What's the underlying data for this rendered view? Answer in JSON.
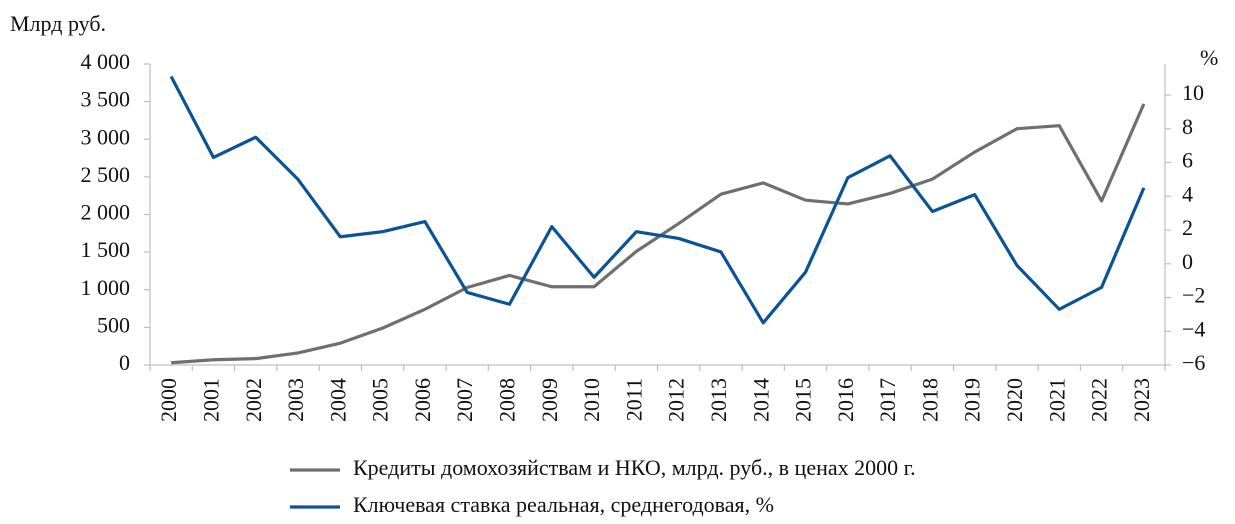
{
  "chart_data": {
    "type": "line",
    "y_label": "Млрд руб.",
    "y2_label": "%",
    "categories": [
      "2000",
      "2001",
      "2002",
      "2003",
      "2004",
      "2005",
      "2006",
      "2007",
      "2008",
      "2009",
      "2010",
      "2011",
      "2012",
      "2013",
      "2014",
      "2015",
      "2016",
      "2017",
      "2018",
      "2019",
      "2020",
      "2021",
      "2022",
      "2023"
    ],
    "series": [
      {
        "name": "Кредиты домохозяйствам и НКО, млрд. руб., в ценах 2000 г.",
        "color": "#6f6f6f",
        "values": [
          30,
          70,
          85,
          160,
          290,
          490,
          740,
          1030,
          1190,
          1040,
          1040,
          1510,
          1880,
          2270,
          2420,
          2190,
          2140,
          2280,
          2470,
          2830,
          3140,
          3180,
          2180,
          3470
        ]
      },
      {
        "name": "Ключевая ставка реальная, среднегодовая, %",
        "color": "#0b5394",
        "axis": "y2",
        "values": [
          11.1,
          6.3,
          7.5,
          5.0,
          1.6,
          1.9,
          2.5,
          -1.7,
          -2.4,
          2.2,
          -0.8,
          1.9,
          1.5,
          0.7,
          -3.5,
          -0.5,
          5.1,
          6.4,
          3.1,
          4.1,
          -0.1,
          -2.7,
          -1.4,
          4.5
        ]
      }
    ],
    "ylim": [
      0,
      4000
    ],
    "yticks": [
      0,
      500,
      {
        "value": 1000,
        "label": "1 000"
      },
      {
        "value": 1500,
        "label": "1 500"
      },
      {
        "value": 2000,
        "label": "2 000"
      },
      {
        "value": 2500,
        "label": "2 500"
      },
      {
        "value": 3000,
        "label": "3 000"
      },
      {
        "value": 3500,
        "label": "3 500"
      },
      {
        "value": 4000,
        "label": "4 000"
      }
    ],
    "y2lim": [
      -6,
      11.84
    ],
    "y2ticks": [
      {
        "value": -6,
        "label": "−6"
      },
      {
        "value": -4,
        "label": "−4"
      },
      {
        "value": -2,
        "label": "−2"
      },
      0,
      2,
      4,
      6,
      8,
      10
    ],
    "grid": false,
    "legend": "bottom"
  }
}
